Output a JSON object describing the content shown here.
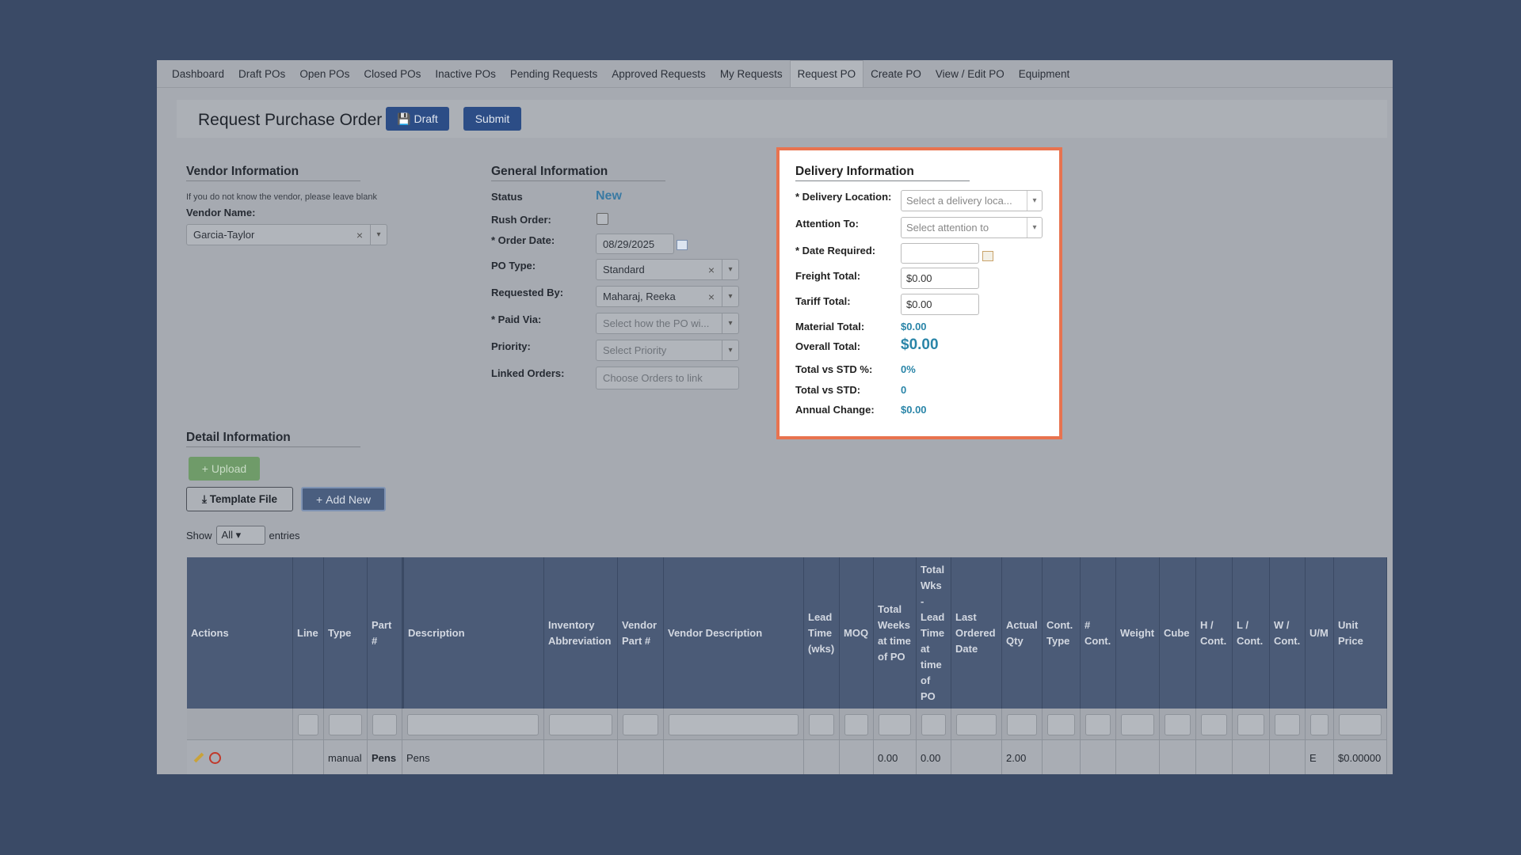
{
  "nav": {
    "tabs": [
      "Dashboard",
      "Draft POs",
      "Open POs",
      "Closed POs",
      "Inactive POs",
      "Pending Requests",
      "Approved Requests",
      "My Requests",
      "Request PO",
      "Create PO",
      "View / Edit PO",
      "Equipment"
    ],
    "active": "Request PO"
  },
  "header": {
    "title": "Request Purchase Order",
    "buttons": [
      "Draft",
      "Submit"
    ]
  },
  "vendor": {
    "heading": "Vendor Information",
    "note": "If you do not know the vendor, please leave blank",
    "label": "Vendor Name:",
    "value": "Garcia-Taylor"
  },
  "general": {
    "heading": "General Information",
    "status": {
      "label": "Status",
      "value": "New"
    },
    "rush": {
      "label": "Rush Order:"
    },
    "order_date": {
      "label": "* Order Date:",
      "value": "08/29/2025"
    },
    "po_type": {
      "label": "PO Type:",
      "value": "Standard"
    },
    "requested_by": {
      "label": "Requested By:",
      "value": "Maharaj, Reeka"
    },
    "paid_via": {
      "label": "* Paid Via:",
      "placeholder": "Select how the PO wi..."
    },
    "priority": {
      "label": "Priority:",
      "placeholder": "Select Priority"
    },
    "linked": {
      "label": "Linked Orders:",
      "placeholder": "Choose Orders to link"
    }
  },
  "delivery": {
    "heading": "Delivery Information",
    "location": {
      "label": "* Delivery Location:",
      "placeholder": "Select a delivery loca..."
    },
    "attention": {
      "label": "Attention To:",
      "placeholder": "Select attention to"
    },
    "date_required": {
      "label": "* Date Required:"
    },
    "freight": {
      "label": "Freight Total:",
      "value": "$0.00"
    },
    "tariff": {
      "label": "Tariff Total:",
      "value": "$0.00"
    },
    "material": {
      "label": "Material Total:",
      "value": "$0.00"
    },
    "overall": {
      "label": "Overall Total:",
      "value": "$0.00"
    },
    "vs_std_pct": {
      "label": "Total vs STD %:",
      "value": "0%"
    },
    "vs_std": {
      "label": "Total vs STD:",
      "value": "0"
    },
    "annual": {
      "label": "Annual Change:",
      "value": "$0.00"
    }
  },
  "detail": {
    "heading": "Detail Information",
    "upload": "Upload",
    "template": "Template File",
    "add_new": "Add New",
    "show": "Show",
    "show_value": "All",
    "entries": "entries"
  },
  "table": {
    "headers": [
      "Actions",
      "Line",
      "Type",
      "Part #",
      "Description",
      "Inventory Abbreviation",
      "Vendor Part #",
      "Vendor Description",
      "Lead Time (wks)",
      "MOQ",
      "Total Weeks at time of PO",
      "Total Wks - Lead Time at time of PO",
      "Last Ordered Date",
      "Actual Qty",
      "Cont. Type",
      "# Cont.",
      "Weight",
      "Cube",
      "H / Cont.",
      "L / Cont.",
      "W / Cont.",
      "U/M",
      "Unit Price"
    ],
    "row": {
      "type": "manual",
      "part": "Pens",
      "description": "Pens",
      "total_weeks": "0.00",
      "total_wks_lead": "0.00",
      "actual_qty": "2.00",
      "um": "E",
      "unit_price": "$0.00000"
    }
  }
}
